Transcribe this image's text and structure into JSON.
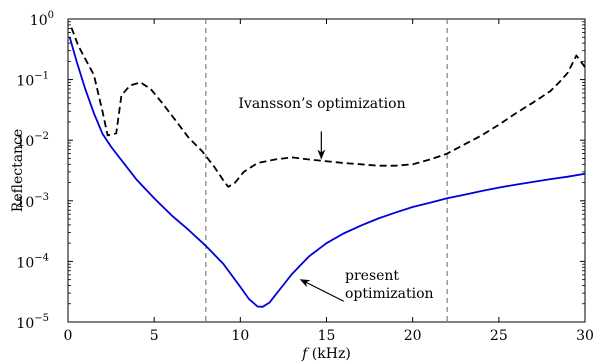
{
  "chart_data": {
    "type": "line",
    "xlabel": {
      "italic": "f",
      "rest": " (kHz)"
    },
    "ylabel": "Reflectance",
    "xlim": [
      0,
      30
    ],
    "ylim": [
      1e-05,
      1
    ],
    "yscale": "log",
    "grid": false,
    "legend": "none",
    "x_ticks": [
      "0",
      "5",
      "10",
      "15",
      "20",
      "25",
      "30"
    ],
    "x_tick_values": [
      0,
      5,
      10,
      15,
      20,
      25,
      30
    ],
    "y_ticks": [
      {
        "value": 1,
        "base": "10",
        "exp": "0"
      },
      {
        "value": 0.1,
        "base": "10",
        "exp": "−1"
      },
      {
        "value": 0.01,
        "base": "10",
        "exp": "−2"
      },
      {
        "value": 0.001,
        "base": "10",
        "exp": "−3"
      },
      {
        "value": 0.0001,
        "base": "10",
        "exp": "−4"
      },
      {
        "value": 1e-05,
        "base": "10",
        "exp": "−5"
      }
    ],
    "vlines": [
      8,
      22
    ],
    "series": [
      {
        "style": "dashed",
        "color": "#000000",
        "x": [
          0.2,
          0.6,
          1.0,
          1.5,
          2.0,
          2.3,
          2.8,
          3.1,
          3.6,
          4.2,
          4.8,
          5.5,
          6.2,
          7.0,
          7.8,
          8.5,
          9.0,
          9.3,
          9.7,
          10.2,
          11.0,
          12.0,
          13.0,
          14.0,
          15.0,
          16.0,
          17.0,
          18.0,
          19.0,
          20.0,
          21.0,
          22.0,
          23.0,
          24.0,
          25.0,
          26.0,
          27.0,
          28.0,
          28.5,
          29.0,
          29.5,
          30.0
        ],
        "y": [
          0.72,
          0.36,
          0.22,
          0.12,
          0.03,
          0.012,
          0.013,
          0.055,
          0.08,
          0.09,
          0.07,
          0.04,
          0.022,
          0.011,
          0.0065,
          0.0036,
          0.0022,
          0.0017,
          0.002,
          0.003,
          0.0042,
          0.0048,
          0.0052,
          0.0048,
          0.0045,
          0.0042,
          0.004,
          0.0038,
          0.0038,
          0.004,
          0.0048,
          0.006,
          0.0085,
          0.012,
          0.018,
          0.028,
          0.042,
          0.065,
          0.09,
          0.13,
          0.25,
          0.16
        ]
      },
      {
        "style": "solid",
        "color": "#0000dd",
        "x": [
          0.1,
          0.5,
          1.0,
          1.5,
          2.0,
          2.5,
          3.0,
          4.0,
          5.0,
          6.0,
          7.0,
          8.0,
          9.0,
          10.0,
          10.5,
          11.0,
          11.3,
          11.7,
          12.0,
          12.5,
          13.0,
          14.0,
          15.0,
          16.0,
          17.0,
          18.0,
          19.0,
          20.0,
          21.0,
          22.0,
          23.0,
          24.0,
          25.0,
          26.0,
          27.0,
          28.0,
          29.0,
          30.0
        ],
        "y": [
          0.5,
          0.2,
          0.07,
          0.028,
          0.0128,
          0.0078,
          0.0051,
          0.0022,
          0.0011,
          0.00058,
          0.00033,
          0.00018,
          9.2e-05,
          3.8e-05,
          2.4e-05,
          1.8e-05,
          1.78e-05,
          2.1e-05,
          2.7e-05,
          4.1e-05,
          6.2e-05,
          0.000122,
          0.0002,
          0.00029,
          0.00039,
          0.00051,
          0.00064,
          0.00079,
          0.00093,
          0.0011,
          0.00126,
          0.00145,
          0.00165,
          0.00185,
          0.00205,
          0.00228,
          0.0025,
          0.0028
        ]
      }
    ],
    "annotations": [
      {
        "lines": [
          "Ivansson’s optimization"
        ],
        "align": "middle",
        "arrow_to": [
          14.7,
          0.005
        ],
        "arrow_from": [
          14.7,
          0.014
        ]
      },
      {
        "lines": [
          "present",
          "optimization"
        ],
        "align": "start",
        "arrow_to": [
          13.5,
          5e-05
        ],
        "arrow_from": [
          16.0,
          2.2e-05
        ]
      }
    ]
  }
}
